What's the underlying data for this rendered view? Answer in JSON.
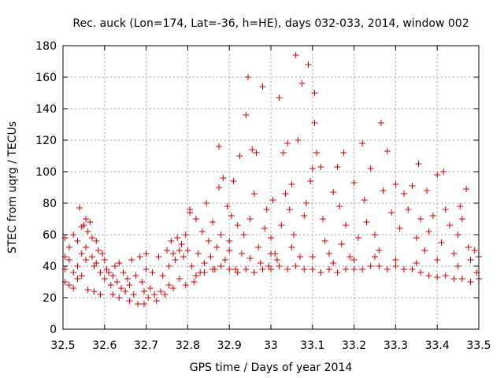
{
  "chart_data": {
    "type": "scatter",
    "title": "Rec. auck (Lon=174, Lat=-36, h=HE), days 032-033, 2014, window 002",
    "xlabel": "GPS time / Days of year 2014",
    "ylabel": "STEC from uqrg / TECUs",
    "xlim": [
      32.5,
      33.5
    ],
    "ylim": [
      0,
      180
    ],
    "xticks": [
      32.5,
      32.6,
      32.7,
      32.8,
      32.9,
      33.0,
      33.1,
      33.2,
      33.3,
      33.4,
      33.5
    ],
    "xtick_labels": [
      "32.5",
      "32.6",
      "32.7",
      "32.8",
      "32.9",
      "33",
      "33.1",
      "33.2",
      "33.3",
      "33.4",
      "33.5"
    ],
    "yticks": [
      0,
      20,
      40,
      60,
      80,
      100,
      120,
      140,
      160,
      180
    ],
    "ytick_labels": [
      "0",
      "20",
      "40",
      "60",
      "80",
      "100",
      "120",
      "140",
      "160",
      "180"
    ],
    "grid": true,
    "marker": "+",
    "color": "#cc0000",
    "series": [
      {
        "name": "STEC",
        "points": [
          [
            32.505,
            58
          ],
          [
            32.505,
            46
          ],
          [
            32.505,
            38
          ],
          [
            32.505,
            30
          ],
          [
            32.515,
            52
          ],
          [
            32.515,
            44
          ],
          [
            32.515,
            28
          ],
          [
            32.525,
            60
          ],
          [
            32.525,
            36
          ],
          [
            32.525,
            26
          ],
          [
            32.535,
            56
          ],
          [
            32.535,
            40
          ],
          [
            32.535,
            32
          ],
          [
            32.54,
            77
          ],
          [
            32.545,
            65
          ],
          [
            32.545,
            48
          ],
          [
            32.545,
            34
          ],
          [
            32.55,
            66
          ],
          [
            32.555,
            70
          ],
          [
            32.555,
            52
          ],
          [
            32.555,
            44
          ],
          [
            32.56,
            62
          ],
          [
            32.56,
            25
          ],
          [
            32.565,
            68
          ],
          [
            32.57,
            58
          ],
          [
            32.57,
            46
          ],
          [
            32.575,
            40
          ],
          [
            32.575,
            24
          ],
          [
            32.58,
            56
          ],
          [
            32.58,
            42
          ],
          [
            32.585,
            50
          ],
          [
            32.59,
            36
          ],
          [
            32.59,
            22
          ],
          [
            32.595,
            48
          ],
          [
            32.6,
            44
          ],
          [
            32.6,
            32
          ],
          [
            32.605,
            38
          ],
          [
            32.61,
            36
          ],
          [
            32.615,
            28
          ],
          [
            32.62,
            34
          ],
          [
            32.62,
            22
          ],
          [
            32.625,
            40
          ],
          [
            32.63,
            30
          ],
          [
            32.635,
            42
          ],
          [
            32.635,
            20
          ],
          [
            32.64,
            26
          ],
          [
            32.645,
            36
          ],
          [
            32.65,
            24
          ],
          [
            32.655,
            32
          ],
          [
            32.66,
            28
          ],
          [
            32.66,
            18
          ],
          [
            32.665,
            44
          ],
          [
            32.67,
            22
          ],
          [
            32.675,
            34
          ],
          [
            32.68,
            16
          ],
          [
            32.685,
            46
          ],
          [
            32.69,
            30
          ],
          [
            32.695,
            24
          ],
          [
            32.695,
            16
          ],
          [
            32.7,
            48
          ],
          [
            32.7,
            38
          ],
          [
            32.705,
            20
          ],
          [
            32.71,
            26
          ],
          [
            32.715,
            36
          ],
          [
            32.72,
            22
          ],
          [
            32.725,
            18
          ],
          [
            32.73,
            46
          ],
          [
            32.735,
            24
          ],
          [
            32.74,
            34
          ],
          [
            32.745,
            22
          ],
          [
            32.75,
            50
          ],
          [
            32.755,
            40
          ],
          [
            32.755,
            28
          ],
          [
            32.76,
            56
          ],
          [
            32.765,
            48
          ],
          [
            32.765,
            26
          ],
          [
            32.77,
            44
          ],
          [
            32.775,
            58
          ],
          [
            32.78,
            50
          ],
          [
            32.78,
            32
          ],
          [
            32.785,
            54
          ],
          [
            32.79,
            46
          ],
          [
            32.795,
            60
          ],
          [
            32.795,
            28
          ],
          [
            32.8,
            50
          ],
          [
            32.805,
            76
          ],
          [
            32.805,
            74
          ],
          [
            32.81,
            40
          ],
          [
            32.815,
            30
          ],
          [
            32.82,
            70
          ],
          [
            32.825,
            48
          ],
          [
            32.83,
            36
          ],
          [
            32.835,
            62
          ],
          [
            32.84,
            42
          ],
          [
            32.845,
            80
          ],
          [
            32.85,
            56
          ],
          [
            32.855,
            46
          ],
          [
            32.86,
            68
          ],
          [
            32.865,
            38
          ],
          [
            32.87,
            52
          ],
          [
            32.875,
            116
          ],
          [
            32.875,
            90
          ],
          [
            32.88,
            60
          ],
          [
            32.885,
            96
          ],
          [
            32.89,
            44
          ],
          [
            32.895,
            78
          ],
          [
            32.9,
            56
          ],
          [
            32.905,
            72
          ],
          [
            32.91,
            94
          ],
          [
            32.915,
            38
          ],
          [
            32.92,
            66
          ],
          [
            32.925,
            110
          ],
          [
            32.93,
            48
          ],
          [
            32.935,
            60
          ],
          [
            32.94,
            136
          ],
          [
            32.945,
            160
          ],
          [
            32.95,
            70
          ],
          [
            32.955,
            114
          ],
          [
            32.96,
            86
          ],
          [
            32.965,
            112
          ],
          [
            32.97,
            52
          ],
          [
            32.975,
            42
          ],
          [
            32.98,
            154
          ],
          [
            32.985,
            64
          ],
          [
            32.99,
            76
          ],
          [
            32.995,
            40
          ],
          [
            33.0,
            58
          ],
          [
            33.005,
            82
          ],
          [
            33.01,
            48
          ],
          [
            33.015,
            44
          ],
          [
            33.02,
            147
          ],
          [
            33.025,
            66
          ],
          [
            33.03,
            112
          ],
          [
            33.035,
            86
          ],
          [
            33.04,
            118
          ],
          [
            33.045,
            76
          ],
          [
            33.05,
            92
          ],
          [
            33.055,
            60
          ],
          [
            33.06,
            174
          ],
          [
            33.065,
            120
          ],
          [
            33.07,
            46
          ],
          [
            33.075,
            156
          ],
          [
            33.08,
            72
          ],
          [
            33.085,
            80
          ],
          [
            33.09,
            168
          ],
          [
            33.095,
            94
          ],
          [
            33.1,
            102
          ],
          [
            33.105,
            150
          ],
          [
            33.105,
            131
          ],
          [
            33.11,
            112
          ],
          [
            33.12,
            103
          ],
          [
            33.125,
            70
          ],
          [
            33.13,
            56
          ],
          [
            33.14,
            48
          ],
          [
            33.15,
            87
          ],
          [
            33.16,
            103
          ],
          [
            33.165,
            78
          ],
          [
            33.17,
            54
          ],
          [
            33.175,
            112
          ],
          [
            33.18,
            66
          ],
          [
            33.19,
            46
          ],
          [
            33.2,
            93
          ],
          [
            33.21,
            58
          ],
          [
            33.22,
            118
          ],
          [
            33.225,
            82
          ],
          [
            33.23,
            68
          ],
          [
            33.24,
            102
          ],
          [
            33.25,
            60
          ],
          [
            33.26,
            50
          ],
          [
            33.265,
            131
          ],
          [
            33.27,
            88
          ],
          [
            33.28,
            113
          ],
          [
            33.29,
            74
          ],
          [
            33.3,
            92
          ],
          [
            33.31,
            64
          ],
          [
            33.32,
            86
          ],
          [
            33.33,
            76
          ],
          [
            33.34,
            91
          ],
          [
            33.35,
            58
          ],
          [
            33.355,
            105
          ],
          [
            33.36,
            70
          ],
          [
            33.37,
            50
          ],
          [
            33.375,
            88
          ],
          [
            33.38,
            62
          ],
          [
            33.39,
            72
          ],
          [
            33.4,
            98
          ],
          [
            33.41,
            55
          ],
          [
            33.415,
            100
          ],
          [
            33.42,
            76
          ],
          [
            33.43,
            66
          ],
          [
            33.44,
            48
          ],
          [
            33.45,
            60
          ],
          [
            33.455,
            78
          ],
          [
            33.46,
            70
          ],
          [
            33.47,
            89
          ],
          [
            33.475,
            52
          ],
          [
            33.48,
            44
          ],
          [
            33.49,
            50
          ],
          [
            33.495,
            36
          ],
          [
            32.82,
            34
          ],
          [
            32.84,
            36
          ],
          [
            32.86,
            38
          ],
          [
            32.88,
            40
          ],
          [
            32.9,
            38
          ],
          [
            32.92,
            36
          ],
          [
            32.94,
            38
          ],
          [
            32.96,
            36
          ],
          [
            32.98,
            38
          ],
          [
            33.0,
            38
          ],
          [
            33.02,
            40
          ],
          [
            33.04,
            38
          ],
          [
            33.06,
            40
          ],
          [
            33.08,
            38
          ],
          [
            33.1,
            38
          ],
          [
            33.12,
            36
          ],
          [
            33.14,
            38
          ],
          [
            33.16,
            36
          ],
          [
            33.18,
            38
          ],
          [
            33.2,
            38
          ],
          [
            33.22,
            38
          ],
          [
            33.24,
            40
          ],
          [
            33.26,
            40
          ],
          [
            33.28,
            38
          ],
          [
            33.3,
            40
          ],
          [
            33.32,
            38
          ],
          [
            33.34,
            38
          ],
          [
            33.36,
            36
          ],
          [
            33.38,
            34
          ],
          [
            33.4,
            33
          ],
          [
            33.42,
            34
          ],
          [
            33.44,
            32
          ],
          [
            33.46,
            32
          ],
          [
            33.48,
            30
          ],
          [
            33.5,
            32
          ],
          [
            32.9,
            50
          ],
          [
            32.95,
            45
          ],
          [
            33.0,
            48
          ],
          [
            33.05,
            52
          ],
          [
            33.1,
            46
          ],
          [
            33.15,
            42
          ],
          [
            33.2,
            44
          ],
          [
            33.25,
            46
          ],
          [
            33.3,
            44
          ],
          [
            33.35,
            42
          ],
          [
            33.4,
            44
          ],
          [
            33.45,
            40
          ],
          [
            33.5,
            46
          ]
        ]
      }
    ]
  }
}
